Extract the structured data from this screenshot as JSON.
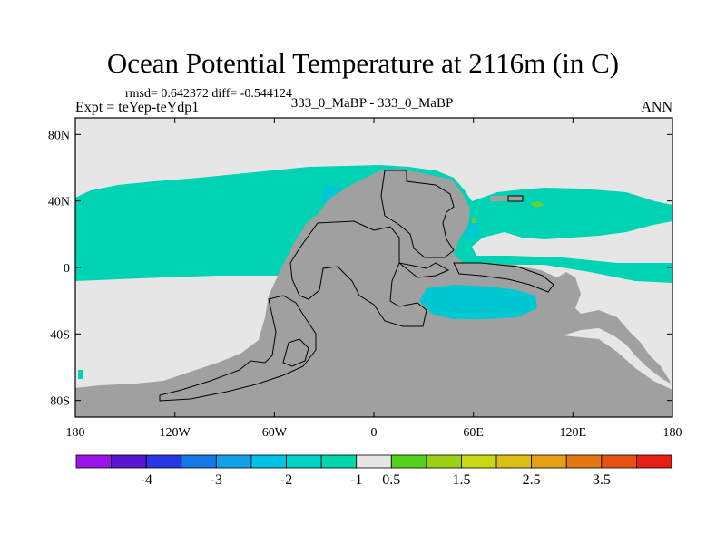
{
  "title": "Ocean Potential Temperature at 2116m (in C)",
  "stats": "rmsd= 0.642372 diff= -0.544124",
  "expt": "Expt = teYep-teYdp1",
  "subtitle": "333_0_MaBP - 333_0_MaBP",
  "season": "ANN",
  "map": {
    "lon_range": [
      -180,
      180
    ],
    "lat_range": [
      -90,
      90
    ],
    "lon_ticks": [
      {
        "value": -180,
        "label": "180"
      },
      {
        "value": -120,
        "label": "120W"
      },
      {
        "value": -60,
        "label": "60W"
      },
      {
        "value": 0,
        "label": "0"
      },
      {
        "value": 60,
        "label": "60E"
      },
      {
        "value": 120,
        "label": "120E"
      },
      {
        "value": 180,
        "label": "180"
      }
    ],
    "lat_ticks": [
      {
        "value": 80,
        "label": "80N"
      },
      {
        "value": 40,
        "label": "40N"
      },
      {
        "value": 0,
        "label": "0"
      },
      {
        "value": -40,
        "label": "40S"
      },
      {
        "value": -80,
        "label": "80S"
      }
    ],
    "colors": {
      "land": "#a0a0a0",
      "no_change": "#e6e6e6",
      "minus_1": "#00d2b4",
      "minus_1_5": "#00c8d2",
      "plus_1": "#64d232"
    }
  },
  "colorbar": {
    "colors": [
      "#9b14e6",
      "#5a14d2",
      "#2837e6",
      "#1478e6",
      "#14a0e6",
      "#00c3e6",
      "#00d2c8",
      "#00d7a8",
      "#e6e6e6",
      "#55d21e",
      "#9bd214",
      "#c8d714",
      "#dcbe14",
      "#e6a014",
      "#e67814",
      "#e65014",
      "#e61e14"
    ],
    "labels": [
      {
        "after": 1,
        "text": "-4"
      },
      {
        "after": 3,
        "text": "-3"
      },
      {
        "after": 5,
        "text": "-2"
      },
      {
        "after": 7,
        "text": "-1"
      },
      {
        "after": 8,
        "text": "0.5"
      },
      {
        "after": 10,
        "text": "1.5"
      },
      {
        "after": 12,
        "text": "2.5"
      },
      {
        "after": 14,
        "text": "3.5"
      }
    ]
  }
}
